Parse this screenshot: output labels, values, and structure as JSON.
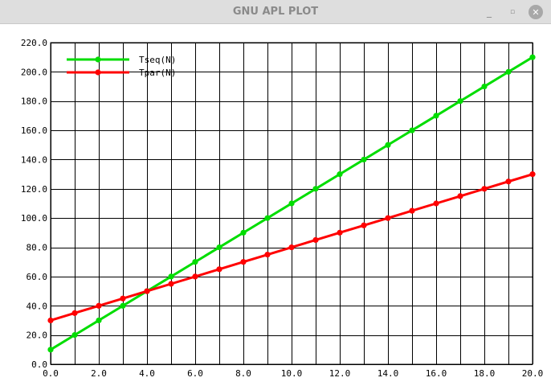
{
  "window": {
    "title": "GNU APL PLOT",
    "minimize_glyph": "_",
    "maximize_glyph": "▫",
    "close_glyph": "✕"
  },
  "chart_data": {
    "type": "line",
    "x": [
      0,
      1,
      2,
      3,
      4,
      5,
      6,
      7,
      8,
      9,
      10,
      11,
      12,
      13,
      14,
      15,
      16,
      17,
      18,
      19,
      20
    ],
    "series": [
      {
        "name": "Tseq(N)",
        "color": "#00dd00",
        "values": [
          10,
          20,
          30,
          40,
          50,
          60,
          70,
          80,
          90,
          100,
          110,
          120,
          130,
          140,
          150,
          160,
          170,
          180,
          190,
          200,
          210
        ]
      },
      {
        "name": "Tpar(N)",
        "color": "#ff0000",
        "values": [
          30,
          35,
          40,
          45,
          50,
          55,
          60,
          65,
          70,
          75,
          80,
          85,
          90,
          95,
          100,
          105,
          110,
          115,
          120,
          125,
          130
        ]
      }
    ],
    "xlim": [
      0,
      20
    ],
    "ylim": [
      0,
      220
    ],
    "xticks": [
      0,
      2,
      4,
      6,
      8,
      10,
      12,
      14,
      16,
      18,
      20
    ],
    "yticks": [
      0,
      20,
      40,
      60,
      80,
      100,
      120,
      140,
      160,
      180,
      200,
      220
    ],
    "xtick_labels": [
      "0.0",
      "2.0",
      "4.0",
      "6.0",
      "8.0",
      "10.0",
      "12.0",
      "14.0",
      "16.0",
      "18.0",
      "20.0"
    ],
    "ytick_labels": [
      "0.0",
      "20.0",
      "40.0",
      "60.0",
      "80.0",
      "100.0",
      "120.0",
      "140.0",
      "160.0",
      "180.0",
      "200.0",
      "220.0"
    ],
    "xgrid_step": 1,
    "grid": true,
    "legend": "top-left"
  }
}
